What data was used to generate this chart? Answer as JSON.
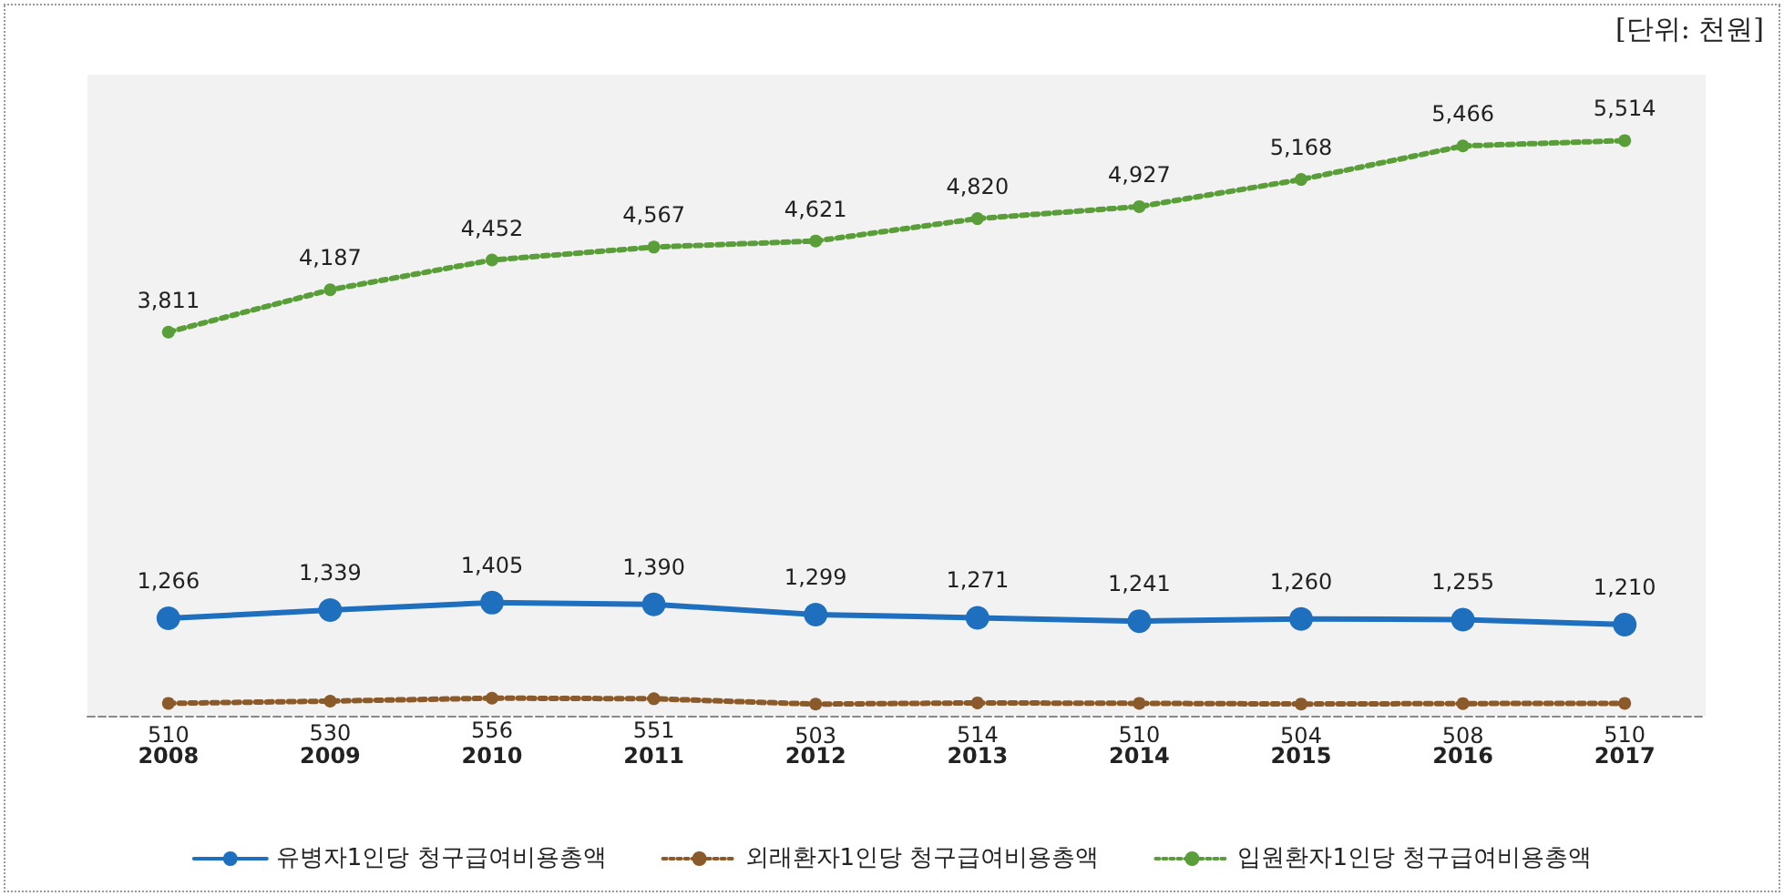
{
  "chart_data": {
    "type": "line",
    "categories": [
      "2008",
      "2009",
      "2010",
      "2011",
      "2012",
      "2013",
      "2014",
      "2015",
      "2016",
      "2017"
    ],
    "series": [
      {
        "name": "유병자1인당 청구급여비용총액",
        "color": "#1f6fbf",
        "marker": "circle",
        "line_style": "solid",
        "values": [
          1266,
          1339,
          1405,
          1390,
          1299,
          1271,
          1241,
          1260,
          1255,
          1210
        ],
        "value_labels": [
          "1,266",
          "1,339",
          "1,405",
          "1,390",
          "1,299",
          "1,271",
          "1,241",
          "1,260",
          "1,255",
          "1,210"
        ]
      },
      {
        "name": "외래환자1인당 청구급여비용총액",
        "color": "#8b5a2b",
        "marker": "circle",
        "line_style": "dotted",
        "values": [
          510,
          530,
          556,
          551,
          503,
          514,
          510,
          504,
          508,
          510
        ],
        "value_labels": [
          "510",
          "530",
          "556",
          "551",
          "503",
          "514",
          "510",
          "504",
          "508",
          "510"
        ]
      },
      {
        "name": "입원환자1인당 청구급여비용총액",
        "color": "#5a9e3a",
        "marker": "circle",
        "line_style": "dotted",
        "values": [
          3811,
          4187,
          4452,
          4567,
          4621,
          4820,
          4927,
          5168,
          5466,
          5514
        ],
        "value_labels": [
          "3,811",
          "4,187",
          "4,452",
          "4,567",
          "4,621",
          "4,820",
          "4,927",
          "5,168",
          "5,466",
          "5,514"
        ]
      }
    ],
    "ylim": [
      400,
      6100
    ],
    "grid": false,
    "legend": "bottom",
    "tick_labels": "x",
    "annotations": [
      "[단위: 천원]"
    ]
  }
}
